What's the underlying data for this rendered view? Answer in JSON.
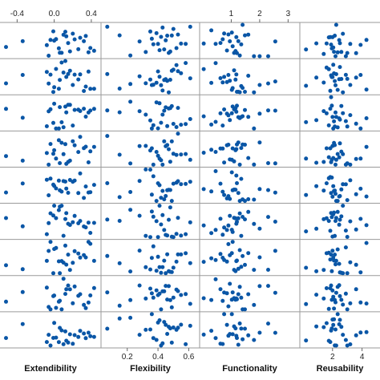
{
  "chart_data": {
    "type": "scatter",
    "variables": [
      "Extendibility",
      "Flexibility",
      "Functionality",
      "Reusability"
    ],
    "columns": [
      {
        "name": "Extendibility",
        "xlim": [
          -0.55,
          0.47
        ],
        "top_ticks": [
          "-0.4",
          "0.0",
          "0.4"
        ],
        "top_tick_values": [
          -0.4,
          0.0,
          0.4
        ],
        "bottom_ticks": [],
        "bottom_tick_values": []
      },
      {
        "name": "Flexibility",
        "xlim": [
          0.05,
          0.65
        ],
        "top_ticks": [],
        "top_tick_values": [],
        "bottom_ticks": [
          "0.2",
          "0.4",
          "0.6"
        ],
        "bottom_tick_values": [
          0.2,
          0.4,
          0.6
        ]
      },
      {
        "name": "Functionality",
        "xlim": [
          0.0,
          3.3
        ],
        "top_ticks": [
          "1",
          "2",
          "3"
        ],
        "top_tick_values": [
          1,
          2,
          3
        ],
        "bottom_ticks": [],
        "bottom_tick_values": []
      },
      {
        "name": "Reusability",
        "xlim": [
          0.0,
          5.0
        ],
        "top_ticks": [],
        "top_tick_values": [],
        "bottom_ticks": [
          "2",
          "4"
        ],
        "bottom_tick_values": [
          2,
          4
        ]
      }
    ],
    "x_values": [
      [
        -0.52,
        -0.34,
        -0.08,
        -0.04,
        -0.01,
        0.02,
        0.05,
        0.08,
        0.1,
        0.12,
        0.13,
        0.15,
        0.17,
        0.2,
        0.22,
        0.26,
        0.32,
        0.34,
        0.37,
        0.39,
        0.43,
        -0.06,
        0.0,
        0.06,
        0.28
      ],
      [
        0.07,
        0.15,
        0.22,
        0.28,
        0.32,
        0.35,
        0.37,
        0.39,
        0.41,
        0.42,
        0.43,
        0.44,
        0.46,
        0.47,
        0.49,
        0.5,
        0.52,
        0.55,
        0.58,
        0.61,
        0.45,
        0.4,
        0.36,
        0.48,
        0.53
      ],
      [
        0.03,
        0.3,
        0.45,
        0.62,
        0.75,
        0.85,
        0.95,
        1.02,
        1.1,
        1.18,
        1.25,
        1.35,
        1.48,
        1.6,
        1.8,
        2.0,
        2.3,
        2.55,
        0.9,
        1.05,
        1.2,
        1.4,
        0.7,
        1.15,
        1.3
      ],
      [
        0.2,
        0.9,
        1.4,
        1.6,
        1.75,
        1.9,
        2.0,
        2.1,
        2.2,
        2.35,
        2.5,
        2.7,
        2.9,
        3.2,
        3.6,
        3.9,
        4.3,
        1.85,
        2.05,
        2.25,
        2.45,
        1.95,
        2.15,
        2.6,
        3.0
      ]
    ],
    "row_count": 9,
    "marker_color": "#0a56a6",
    "grid": true
  }
}
